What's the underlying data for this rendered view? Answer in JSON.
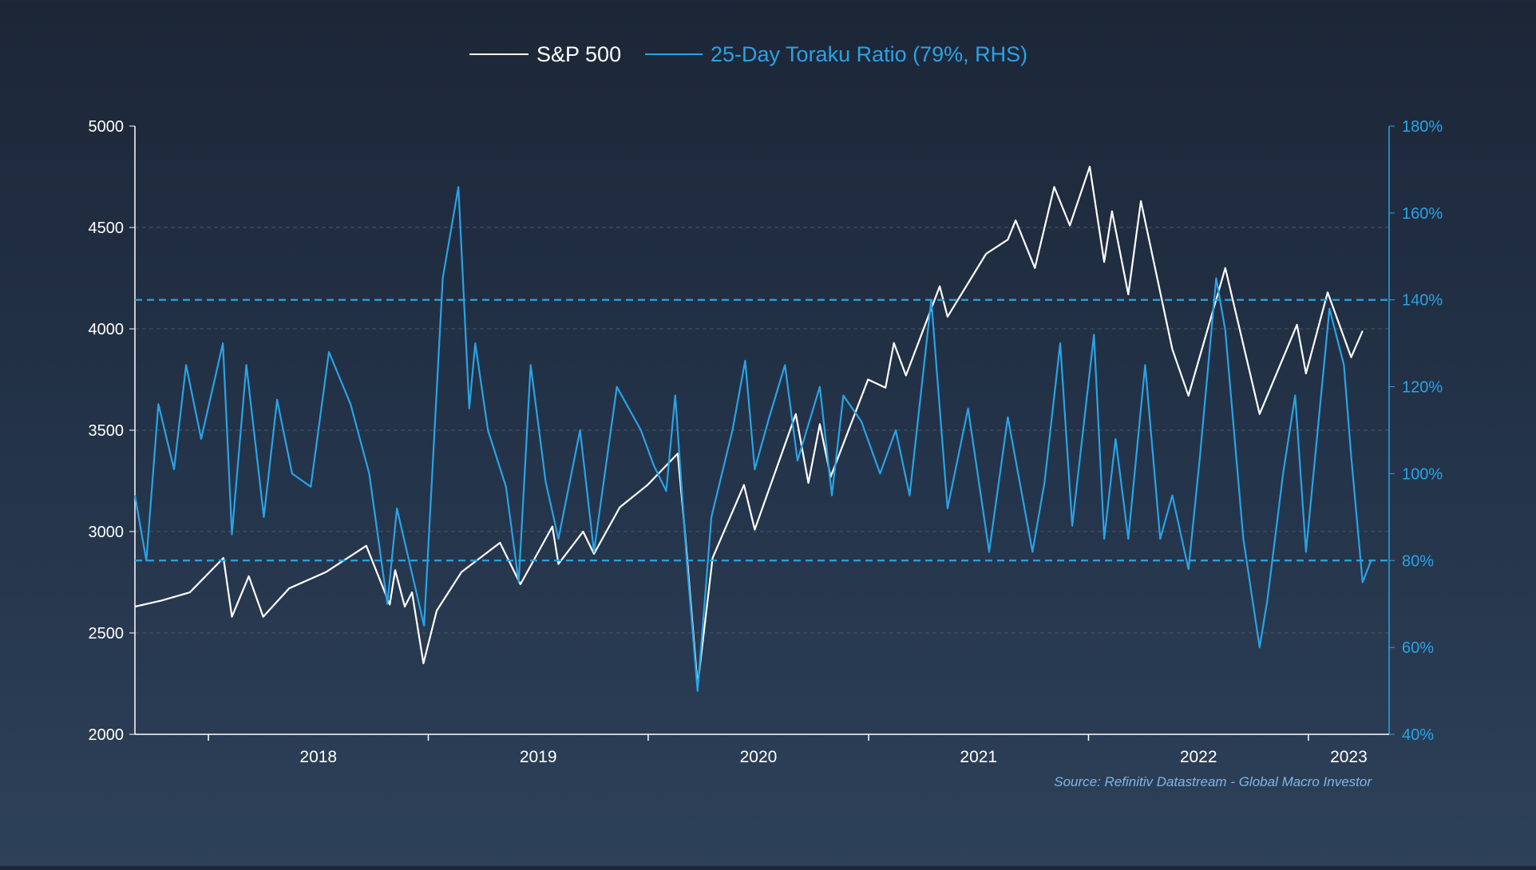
{
  "legend": {
    "sp500_label": "S&P 500",
    "toraku_label": "25-Day Toraku Ratio (79%, RHS)"
  },
  "source": "Source: Refinitiv Datastream - Global Macro Investor",
  "colors": {
    "background_top": "#1c2637",
    "background_bottom": "#2d4159",
    "sp500": "#ffffff",
    "toraku": "#29a3e6",
    "reference_lines": "#29a3e6",
    "grid": "#4a566a",
    "left_axis_text": "#ffffff",
    "right_axis_text": "#29a3e6"
  },
  "chart_data": {
    "type": "line",
    "title": "",
    "x_ticks": [
      "2018",
      "2019",
      "2020",
      "2021",
      "2022",
      "2023"
    ],
    "x_range": [
      "2017-09-01",
      "2023-05-15"
    ],
    "left_axis": {
      "ylim": [
        2000,
        5000
      ],
      "ticks": [
        "2000",
        "2500",
        "3000",
        "3500",
        "4000",
        "4500",
        "5000"
      ]
    },
    "right_axis": {
      "ylim": [
        40,
        180
      ],
      "ticks": [
        "40%",
        "60%",
        "80%",
        "100%",
        "120%",
        "140%",
        "160%",
        "180%"
      ]
    },
    "reference_lines_rhs": [
      80,
      140
    ],
    "grid": "horizontal-dashed",
    "legend_position": "top-center",
    "series": [
      {
        "name": "S&P 500",
        "axis": "left",
        "points": [
          [
            "2017-09-01",
            2630
          ],
          [
            "2017-10-15",
            2660
          ],
          [
            "2017-12-01",
            2700
          ],
          [
            "2018-01-26",
            2870
          ],
          [
            "2018-02-09",
            2580
          ],
          [
            "2018-03-09",
            2780
          ],
          [
            "2018-04-02",
            2580
          ],
          [
            "2018-05-15",
            2720
          ],
          [
            "2018-07-15",
            2800
          ],
          [
            "2018-09-20",
            2930
          ],
          [
            "2018-10-29",
            2640
          ],
          [
            "2018-11-07",
            2810
          ],
          [
            "2018-11-23",
            2630
          ],
          [
            "2018-12-05",
            2700
          ],
          [
            "2018-12-24",
            2350
          ],
          [
            "2019-01-15",
            2610
          ],
          [
            "2019-02-25",
            2800
          ],
          [
            "2019-04-30",
            2945
          ],
          [
            "2019-06-03",
            2740
          ],
          [
            "2019-07-26",
            3025
          ],
          [
            "2019-08-05",
            2840
          ],
          [
            "2019-09-15",
            3000
          ],
          [
            "2019-10-03",
            2890
          ],
          [
            "2019-11-15",
            3120
          ],
          [
            "2019-12-31",
            3230
          ],
          [
            "2020-02-19",
            3385
          ],
          [
            "2020-03-02",
            3000
          ],
          [
            "2020-03-23",
            2240
          ],
          [
            "2020-04-17",
            2870
          ],
          [
            "2020-06-08",
            3230
          ],
          [
            "2020-06-26",
            3010
          ],
          [
            "2020-09-02",
            3580
          ],
          [
            "2020-09-23",
            3240
          ],
          [
            "2020-10-12",
            3530
          ],
          [
            "2020-10-30",
            3270
          ],
          [
            "2020-12-31",
            3750
          ],
          [
            "2021-01-29",
            3710
          ],
          [
            "2021-02-12",
            3930
          ],
          [
            "2021-03-04",
            3770
          ],
          [
            "2021-04-29",
            4210
          ],
          [
            "2021-05-12",
            4060
          ],
          [
            "2021-07-15",
            4370
          ],
          [
            "2021-08-20",
            4440
          ],
          [
            "2021-09-02",
            4535
          ],
          [
            "2021-10-04",
            4300
          ],
          [
            "2021-11-05",
            4700
          ],
          [
            "2021-12-01",
            4510
          ],
          [
            "2022-01-03",
            4800
          ],
          [
            "2022-01-27",
            4330
          ],
          [
            "2022-02-09",
            4580
          ],
          [
            "2022-03-08",
            4170
          ],
          [
            "2022-03-29",
            4630
          ],
          [
            "2022-05-20",
            3900
          ],
          [
            "2022-06-16",
            3670
          ],
          [
            "2022-08-16",
            4300
          ],
          [
            "2022-10-12",
            3580
          ],
          [
            "2022-12-13",
            4020
          ],
          [
            "2022-12-28",
            3780
          ],
          [
            "2023-02-02",
            4180
          ],
          [
            "2023-03-13",
            3860
          ],
          [
            "2023-04-01",
            3990
          ]
        ]
      },
      {
        "name": "25-Day Toraku Ratio (79%, RHS)",
        "axis": "right",
        "points": [
          [
            "2017-09-01",
            95
          ],
          [
            "2017-09-20",
            80
          ],
          [
            "2017-10-10",
            116
          ],
          [
            "2017-11-05",
            101
          ],
          [
            "2017-11-25",
            125
          ],
          [
            "2017-12-20",
            108
          ],
          [
            "2018-01-25",
            130
          ],
          [
            "2018-02-09",
            86
          ],
          [
            "2018-03-05",
            125
          ],
          [
            "2018-04-03",
            90
          ],
          [
            "2018-04-25",
            117
          ],
          [
            "2018-05-20",
            100
          ],
          [
            "2018-06-20",
            97
          ],
          [
            "2018-07-20",
            128
          ],
          [
            "2018-08-25",
            116
          ],
          [
            "2018-09-25",
            100
          ],
          [
            "2018-10-25",
            70
          ],
          [
            "2018-11-10",
            92
          ],
          [
            "2018-12-25",
            65
          ],
          [
            "2019-01-25",
            145
          ],
          [
            "2019-02-20",
            166
          ],
          [
            "2019-03-10",
            115
          ],
          [
            "2019-03-20",
            130
          ],
          [
            "2019-04-10",
            110
          ],
          [
            "2019-05-10",
            97
          ],
          [
            "2019-05-31",
            75
          ],
          [
            "2019-06-20",
            125
          ],
          [
            "2019-07-15",
            98
          ],
          [
            "2019-08-05",
            85
          ],
          [
            "2019-09-10",
            110
          ],
          [
            "2019-10-03",
            82
          ],
          [
            "2019-11-10",
            120
          ],
          [
            "2019-12-20",
            110
          ],
          [
            "2020-01-10",
            102
          ],
          [
            "2020-01-31",
            96
          ],
          [
            "2020-02-15",
            118
          ],
          [
            "2020-03-05",
            80
          ],
          [
            "2020-03-23",
            50
          ],
          [
            "2020-04-15",
            90
          ],
          [
            "2020-05-20",
            110
          ],
          [
            "2020-06-10",
            126
          ],
          [
            "2020-06-26",
            101
          ],
          [
            "2020-07-20",
            113
          ],
          [
            "2020-08-15",
            125
          ],
          [
            "2020-09-05",
            103
          ],
          [
            "2020-10-12",
            120
          ],
          [
            "2020-11-01",
            95
          ],
          [
            "2020-11-20",
            118
          ],
          [
            "2020-12-20",
            112
          ],
          [
            "2021-01-20",
            100
          ],
          [
            "2021-02-15",
            110
          ],
          [
            "2021-03-10",
            95
          ],
          [
            "2021-04-15",
            140
          ],
          [
            "2021-05-12",
            92
          ],
          [
            "2021-06-15",
            115
          ],
          [
            "2021-07-20",
            82
          ],
          [
            "2021-08-20",
            113
          ],
          [
            "2021-09-30",
            82
          ],
          [
            "2021-10-20",
            98
          ],
          [
            "2021-11-15",
            130
          ],
          [
            "2021-12-05",
            88
          ],
          [
            "2022-01-10",
            132
          ],
          [
            "2022-01-27",
            85
          ],
          [
            "2022-02-15",
            108
          ],
          [
            "2022-03-08",
            85
          ],
          [
            "2022-04-05",
            125
          ],
          [
            "2022-04-30",
            85
          ],
          [
            "2022-05-20",
            95
          ],
          [
            "2022-06-16",
            78
          ],
          [
            "2022-07-05",
            104
          ],
          [
            "2022-08-01",
            145
          ],
          [
            "2022-08-16",
            133
          ],
          [
            "2022-09-15",
            85
          ],
          [
            "2022-10-12",
            60
          ],
          [
            "2022-10-25",
            71
          ],
          [
            "2022-11-20",
            100
          ],
          [
            "2022-12-10",
            118
          ],
          [
            "2022-12-28",
            82
          ],
          [
            "2023-01-20",
            115
          ],
          [
            "2023-02-05",
            138
          ],
          [
            "2023-03-01",
            125
          ],
          [
            "2023-03-13",
            104
          ],
          [
            "2023-04-01",
            75
          ],
          [
            "2023-04-15",
            80
          ]
        ]
      }
    ]
  }
}
